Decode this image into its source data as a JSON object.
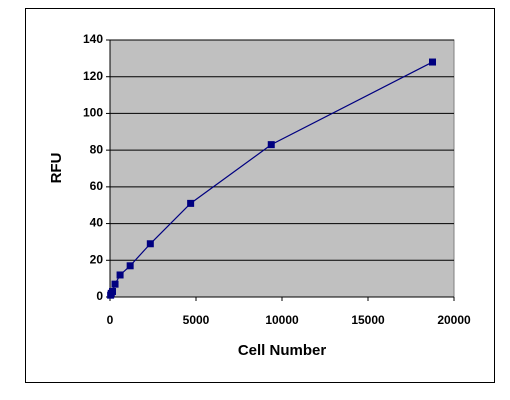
{
  "chart_data": {
    "type": "scatter-line",
    "x": [
      37,
      73,
      146,
      293,
      586,
      1172,
      2344,
      4688,
      9375,
      18750
    ],
    "values": [
      1,
      2,
      3,
      7,
      12,
      17,
      29,
      51,
      83,
      128
    ],
    "color": "#000080",
    "xlabel": "Cell Number",
    "ylabel": "RFU",
    "xlim": [
      0,
      20000
    ],
    "xticks": [
      0,
      5000,
      10000,
      15000,
      20000
    ],
    "ylim": [
      0,
      140
    ],
    "yticks": [
      0,
      20,
      40,
      60,
      80,
      100,
      120,
      140
    ],
    "grid": true
  }
}
